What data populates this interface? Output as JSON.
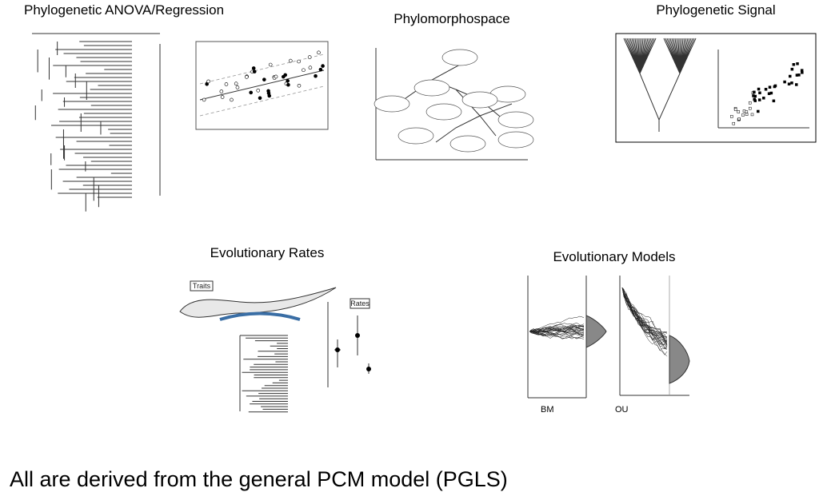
{
  "panels": [
    {
      "title": "Phylogenetic ANOVA/Regression"
    },
    {
      "title": "Phylomorphospace"
    },
    {
      "title": "Phylogenetic Signal"
    },
    {
      "title": "Evolutionary Rates",
      "labels": [
        "Traits",
        "Rates"
      ]
    },
    {
      "title": "Evolutionary Models",
      "labels": [
        "BM",
        "OU"
      ]
    }
  ],
  "footer": "All are derived from the general PCM model (PGLS)"
}
